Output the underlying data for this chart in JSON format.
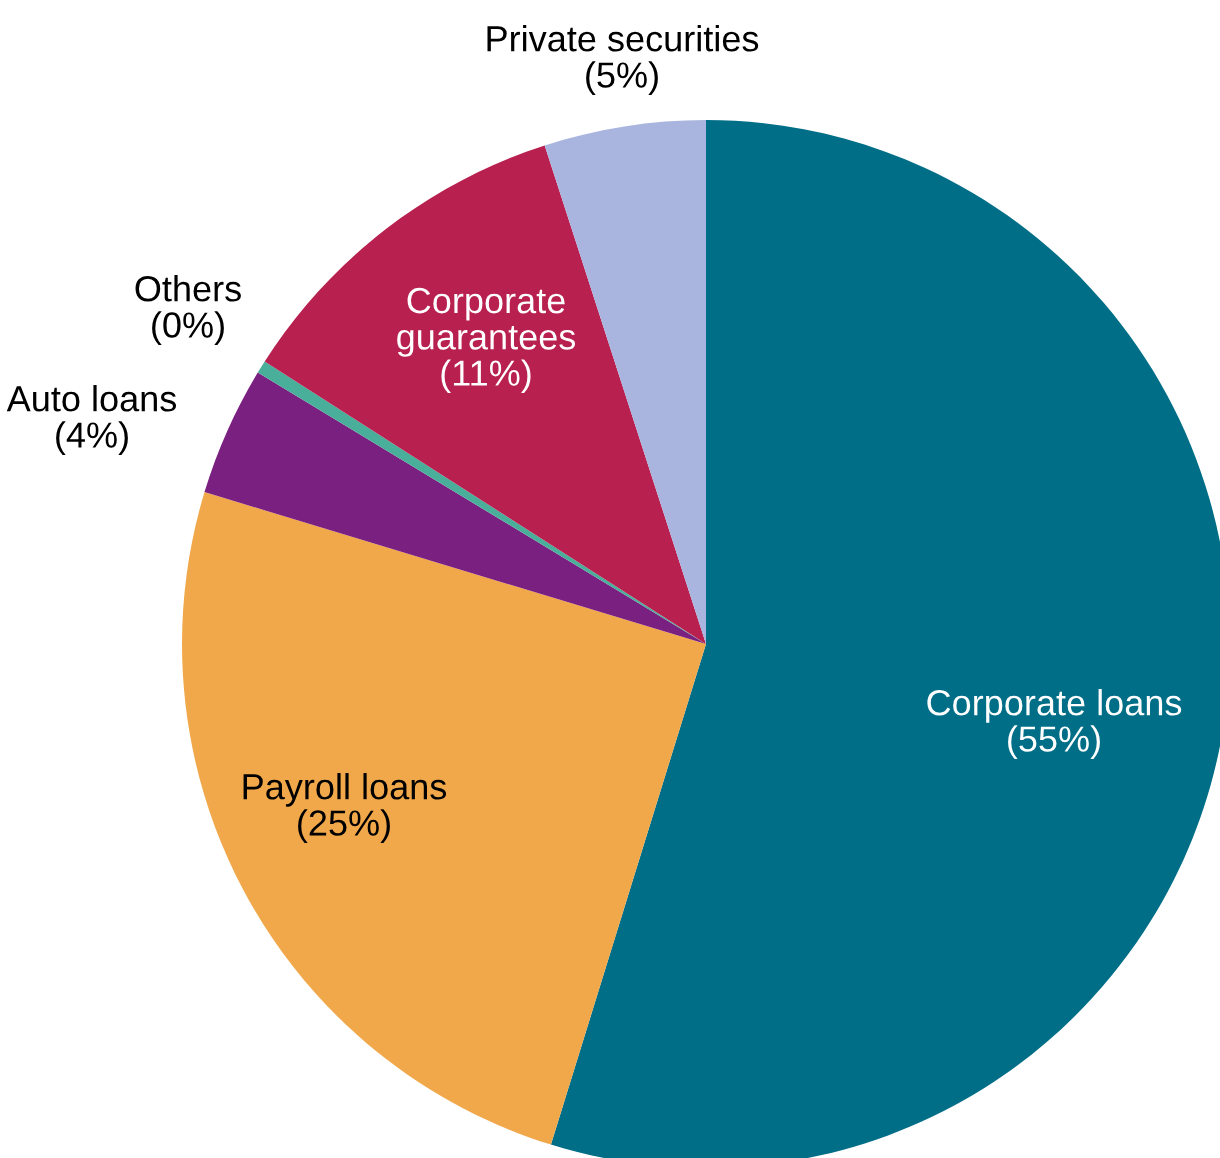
{
  "chart_data": {
    "type": "pie",
    "categories": [
      "Corporate loans",
      "Payroll loans",
      "Auto loans",
      "Others",
      "Corporate guarantees",
      "Private securities"
    ],
    "values": [
      55,
      25,
      4,
      0.4,
      11,
      5
    ],
    "value_labels": [
      "(55%)",
      "(25%)",
      "(4%)",
      "(0%)",
      "(11%)",
      "(5%)"
    ],
    "colors": [
      "#006e87",
      "#f0a84a",
      "#7a2080",
      "#4aaf9a",
      "#b8204f",
      "#a9b5df"
    ]
  }
}
